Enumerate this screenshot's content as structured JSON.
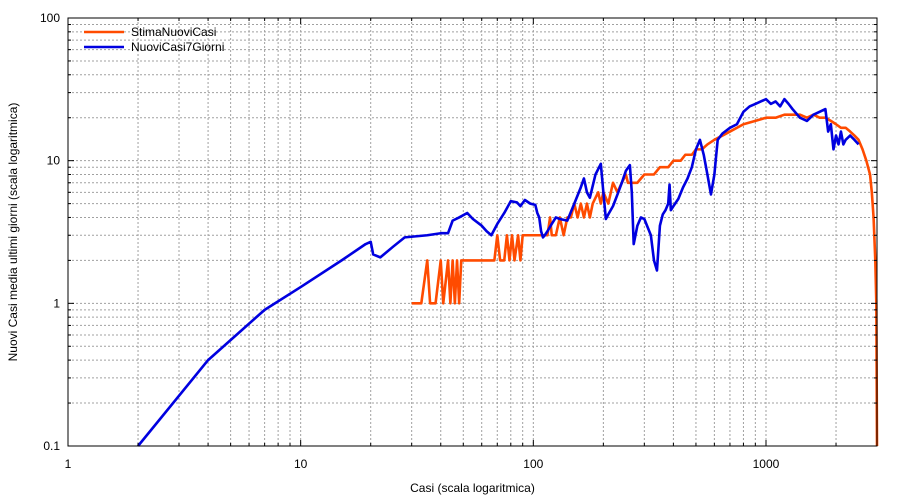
{
  "chart_data": {
    "type": "line",
    "xlabel": "Casi (scala logaritmica)",
    "ylabel": "Nuovi Casi media ultimi giorni (scala logaritmica)",
    "xscale": "log",
    "yscale": "log",
    "xlim": [
      1,
      3000
    ],
    "ylim": [
      0.1,
      100
    ],
    "grid": true,
    "legend": "top-left",
    "x_ticks": [
      {
        "value": 1,
        "label": "1"
      },
      {
        "value": 10,
        "label": "10"
      },
      {
        "value": 100,
        "label": "100"
      },
      {
        "value": 1000,
        "label": "1000"
      }
    ],
    "y_ticks": [
      {
        "value": 0.1,
        "label": "0.1"
      },
      {
        "value": 1,
        "label": "1"
      },
      {
        "value": 10,
        "label": "10"
      },
      {
        "value": 100,
        "label": "100"
      }
    ],
    "series": [
      {
        "name": "StimaNuoviCasi",
        "color": "#ff4b00",
        "points": [
          [
            30,
            1
          ],
          [
            33,
            1
          ],
          [
            35,
            2
          ],
          [
            36,
            1
          ],
          [
            38,
            1
          ],
          [
            40,
            2
          ],
          [
            41,
            1
          ],
          [
            43,
            2
          ],
          [
            44,
            1
          ],
          [
            45,
            2
          ],
          [
            46,
            1
          ],
          [
            47,
            2
          ],
          [
            48,
            1
          ],
          [
            49,
            2
          ],
          [
            50,
            2
          ],
          [
            52,
            2
          ],
          [
            55,
            2
          ],
          [
            60,
            2
          ],
          [
            65,
            2
          ],
          [
            68,
            2
          ],
          [
            70,
            3
          ],
          [
            72,
            2
          ],
          [
            75,
            2
          ],
          [
            77,
            3
          ],
          [
            79,
            2
          ],
          [
            81,
            3
          ],
          [
            83,
            2
          ],
          [
            86,
            3
          ],
          [
            88,
            2
          ],
          [
            90,
            3
          ],
          [
            95,
            3
          ],
          [
            100,
            3
          ],
          [
            105,
            3
          ],
          [
            110,
            3
          ],
          [
            115,
            3
          ],
          [
            118,
            4
          ],
          [
            120,
            3
          ],
          [
            125,
            3
          ],
          [
            130,
            4
          ],
          [
            135,
            3
          ],
          [
            140,
            4
          ],
          [
            145,
            4
          ],
          [
            150,
            5
          ],
          [
            155,
            4
          ],
          [
            160,
            5
          ],
          [
            165,
            4
          ],
          [
            170,
            5
          ],
          [
            175,
            4
          ],
          [
            180,
            5
          ],
          [
            190,
            6
          ],
          [
            195,
            5
          ],
          [
            200,
            6
          ],
          [
            210,
            5
          ],
          [
            220,
            7
          ],
          [
            230,
            6
          ],
          [
            240,
            7
          ],
          [
            250,
            8
          ],
          [
            255,
            7
          ],
          [
            260,
            7
          ],
          [
            270,
            7
          ],
          [
            280,
            7
          ],
          [
            300,
            8
          ],
          [
            330,
            8
          ],
          [
            350,
            9
          ],
          [
            380,
            9
          ],
          [
            400,
            10
          ],
          [
            430,
            10
          ],
          [
            450,
            11
          ],
          [
            480,
            11
          ],
          [
            500,
            12
          ],
          [
            530,
            12
          ],
          [
            560,
            13
          ],
          [
            600,
            14
          ],
          [
            650,
            15
          ],
          [
            700,
            16
          ],
          [
            800,
            18
          ],
          [
            900,
            19
          ],
          [
            1000,
            20
          ],
          [
            1100,
            20
          ],
          [
            1200,
            21
          ],
          [
            1300,
            21
          ],
          [
            1400,
            21
          ],
          [
            1500,
            20
          ],
          [
            1600,
            21
          ],
          [
            1700,
            20
          ],
          [
            1800,
            20
          ],
          [
            1900,
            19
          ],
          [
            2000,
            18
          ],
          [
            2100,
            17
          ],
          [
            2200,
            17
          ],
          [
            2300,
            16
          ],
          [
            2400,
            15
          ],
          [
            2500,
            14
          ],
          [
            2600,
            12
          ],
          [
            2700,
            10
          ],
          [
            2800,
            8
          ],
          [
            2850,
            6
          ],
          [
            2900,
            4
          ],
          [
            2950,
            2
          ],
          [
            2980,
            1
          ],
          [
            3000,
            0.1
          ]
        ]
      },
      {
        "name": "NuoviCasi7Giorni",
        "color": "#0000e0",
        "points": [
          [
            2,
            0.1
          ],
          [
            4,
            0.4
          ],
          [
            7,
            0.9
          ],
          [
            10,
            1.3
          ],
          [
            15,
            2
          ],
          [
            19,
            2.6
          ],
          [
            20,
            2.7
          ],
          [
            20.5,
            2.2
          ],
          [
            22,
            2.1
          ],
          [
            25,
            2.5
          ],
          [
            28,
            2.9
          ],
          [
            35,
            3
          ],
          [
            40,
            3.1
          ],
          [
            43,
            3.1
          ],
          [
            45,
            3.8
          ],
          [
            48,
            4
          ],
          [
            52,
            4.3
          ],
          [
            55,
            3.9
          ],
          [
            60,
            3.5
          ],
          [
            63,
            3.2
          ],
          [
            66,
            3
          ],
          [
            70,
            3.6
          ],
          [
            75,
            4.3
          ],
          [
            80,
            5.2
          ],
          [
            85,
            5.1
          ],
          [
            88,
            4.8
          ],
          [
            92,
            5.3
          ],
          [
            97,
            5
          ],
          [
            102,
            4.9
          ],
          [
            104,
            4.3
          ],
          [
            106,
            4
          ],
          [
            108,
            3.2
          ],
          [
            110,
            2.9
          ],
          [
            112,
            3
          ],
          [
            115,
            3.2
          ],
          [
            120,
            3.6
          ],
          [
            125,
            4
          ],
          [
            130,
            3.9
          ],
          [
            140,
            3.8
          ],
          [
            150,
            5
          ],
          [
            160,
            6.5
          ],
          [
            165,
            7.5
          ],
          [
            170,
            6
          ],
          [
            175,
            5.5
          ],
          [
            185,
            8
          ],
          [
            195,
            9.5
          ],
          [
            200,
            6
          ],
          [
            205,
            3.9
          ],
          [
            210,
            4.2
          ],
          [
            220,
            4.8
          ],
          [
            230,
            5.8
          ],
          [
            240,
            7
          ],
          [
            250,
            8.5
          ],
          [
            260,
            9.3
          ],
          [
            265,
            6
          ],
          [
            270,
            2.6
          ],
          [
            280,
            3.5
          ],
          [
            290,
            4
          ],
          [
            300,
            3.9
          ],
          [
            320,
            3
          ],
          [
            330,
            2
          ],
          [
            340,
            1.7
          ],
          [
            350,
            3.5
          ],
          [
            360,
            4.2
          ],
          [
            370,
            4.5
          ],
          [
            380,
            5
          ],
          [
            385,
            6.8
          ],
          [
            390,
            4.5
          ],
          [
            400,
            4.8
          ],
          [
            420,
            5.4
          ],
          [
            440,
            6.5
          ],
          [
            460,
            7.5
          ],
          [
            480,
            9
          ],
          [
            500,
            12
          ],
          [
            520,
            14
          ],
          [
            540,
            11
          ],
          [
            560,
            8
          ],
          [
            580,
            5.8
          ],
          [
            600,
            8
          ],
          [
            620,
            14
          ],
          [
            650,
            15.5
          ],
          [
            700,
            17
          ],
          [
            750,
            18
          ],
          [
            800,
            22
          ],
          [
            850,
            24
          ],
          [
            900,
            25
          ],
          [
            950,
            26
          ],
          [
            1000,
            27
          ],
          [
            1050,
            25
          ],
          [
            1100,
            26
          ],
          [
            1150,
            24
          ],
          [
            1200,
            27
          ],
          [
            1250,
            25
          ],
          [
            1300,
            23
          ],
          [
            1400,
            20
          ],
          [
            1500,
            19
          ],
          [
            1600,
            21
          ],
          [
            1700,
            22
          ],
          [
            1800,
            23
          ],
          [
            1850,
            16
          ],
          [
            1900,
            18
          ],
          [
            1950,
            12
          ],
          [
            2000,
            15
          ],
          [
            2050,
            13
          ],
          [
            2100,
            16
          ],
          [
            2150,
            13
          ],
          [
            2200,
            14
          ],
          [
            2300,
            15
          ],
          [
            2400,
            14
          ],
          [
            2500,
            13
          ]
        ]
      }
    ]
  }
}
